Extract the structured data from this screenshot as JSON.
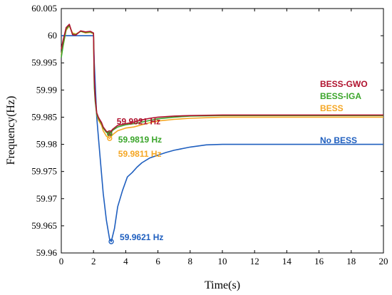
{
  "chart_data": {
    "type": "line",
    "xlabel": "Time(s)",
    "ylabel": "Frequency(Hz)",
    "xlim": [
      0,
      20
    ],
    "ylim": [
      59.96,
      60.005
    ],
    "x_ticks": [
      0,
      2,
      4,
      6,
      8,
      10,
      12,
      14,
      16,
      18,
      20
    ],
    "y_ticks": [
      59.96,
      59.965,
      59.97,
      59.975,
      59.98,
      59.985,
      59.99,
      59.995,
      60,
      60.005
    ],
    "y_tick_labels": [
      "59.96",
      "59.965",
      "59.97",
      "59.975",
      "59.98",
      "59.985",
      "59.99",
      "59.995",
      "60",
      "60.005"
    ],
    "grid": false,
    "series": [
      {
        "name": "No BESS",
        "color": "#1f5fbf",
        "x": [
          0,
          2,
          2.05,
          2.2,
          2.4,
          2.6,
          2.8,
          3.0,
          3.1,
          3.3,
          3.5,
          3.8,
          4.1,
          4.4,
          4.7,
          5.0,
          5.5,
          6.0,
          6.5,
          7.0,
          8.0,
          9.0,
          10.0,
          12.0,
          14.0,
          16.0,
          18.0,
          20.0
        ],
        "y": [
          60.0,
          60.0,
          59.995,
          59.985,
          59.978,
          59.971,
          59.966,
          59.9625,
          59.9621,
          59.9645,
          59.9685,
          59.9715,
          59.974,
          59.9748,
          59.9758,
          59.9766,
          59.9775,
          59.978,
          59.9785,
          59.9789,
          59.9795,
          59.9799,
          59.98,
          59.98,
          59.98,
          59.98,
          59.98,
          59.98
        ]
      },
      {
        "name": "BESS",
        "color": "#f5a623",
        "x": [
          0,
          0.1,
          0.3,
          0.5,
          0.7,
          0.9,
          1.2,
          1.5,
          1.8,
          2.0,
          2.05,
          2.1,
          2.2,
          2.3,
          2.4,
          2.5,
          2.6,
          2.8,
          3.0,
          3.2,
          3.5,
          4.0,
          4.5,
          5.0,
          5.5,
          6.0,
          7.0,
          8.0,
          10.0,
          12.0,
          15.0,
          20.0
        ],
        "y": [
          59.9965,
          59.998,
          60.001,
          60.0018,
          60.0005,
          60.0003,
          60.0008,
          60.0005,
          60.0006,
          60.0004,
          59.991,
          59.9885,
          59.9855,
          59.9845,
          59.984,
          59.9835,
          59.9825,
          59.9815,
          59.9811,
          59.9818,
          59.9825,
          59.983,
          59.9832,
          59.9836,
          59.984,
          59.9843,
          59.9846,
          59.9848,
          59.985,
          59.985,
          59.985,
          59.985
        ]
      },
      {
        "name": "BESS-IGA",
        "color": "#3aa52a",
        "x": [
          0,
          0.1,
          0.3,
          0.5,
          0.7,
          0.9,
          1.2,
          1.5,
          1.8,
          2.0,
          2.05,
          2.1,
          2.2,
          2.3,
          2.4,
          2.5,
          2.6,
          2.8,
          3.0,
          3.2,
          3.5,
          4.0,
          4.5,
          5.0,
          5.5,
          6.0,
          7.0,
          8.0,
          10.0,
          12.0,
          15.0,
          20.0
        ],
        "y": [
          59.996,
          59.998,
          60.0012,
          60.0019,
          60.0003,
          60.0002,
          60.0008,
          60.0006,
          60.0007,
          60.0004,
          59.9905,
          59.988,
          59.9855,
          59.9848,
          59.9843,
          59.9838,
          59.983,
          59.9822,
          59.9819,
          59.9826,
          59.9832,
          59.9836,
          59.9838,
          59.9841,
          59.9844,
          59.9847,
          59.985,
          59.9852,
          59.9853,
          59.9853,
          59.9853,
          59.9853
        ]
      },
      {
        "name": "BESS-GWO",
        "color": "#b0122e",
        "x": [
          0,
          0.1,
          0.3,
          0.5,
          0.7,
          0.9,
          1.2,
          1.5,
          1.8,
          2.0,
          2.05,
          2.1,
          2.2,
          2.3,
          2.4,
          2.5,
          2.6,
          2.8,
          3.0,
          3.2,
          3.5,
          4.0,
          4.5,
          5.0,
          5.5,
          6.0,
          7.0,
          8.0,
          10.0,
          12.0,
          15.0,
          20.0
        ],
        "y": [
          59.9975,
          59.999,
          60.0015,
          60.0021,
          60.0002,
          60.0001,
          60.0009,
          60.0007,
          60.0008,
          60.0005,
          59.992,
          59.9888,
          59.9858,
          59.985,
          59.9845,
          59.984,
          59.9832,
          59.9824,
          59.9821,
          59.9828,
          59.9835,
          59.9838,
          59.9841,
          59.9845,
          59.9848,
          59.985,
          59.9852,
          59.9853,
          59.9854,
          59.9854,
          59.9854,
          59.9854
        ]
      }
    ],
    "annotations": [
      {
        "text": "59.9821 Hz",
        "x": 3.0,
        "y": 59.9821,
        "color": "#b0122e"
      },
      {
        "text": "59.9819 Hz",
        "x": 3.0,
        "y": 59.9819,
        "color": "#3aa52a"
      },
      {
        "text": "59.9811 Hz",
        "x": 3.0,
        "y": 59.9811,
        "color": "#f5a623"
      },
      {
        "text": "59.9621 Hz",
        "x": 3.1,
        "y": 59.9621,
        "color": "#1f5fbf"
      }
    ]
  }
}
